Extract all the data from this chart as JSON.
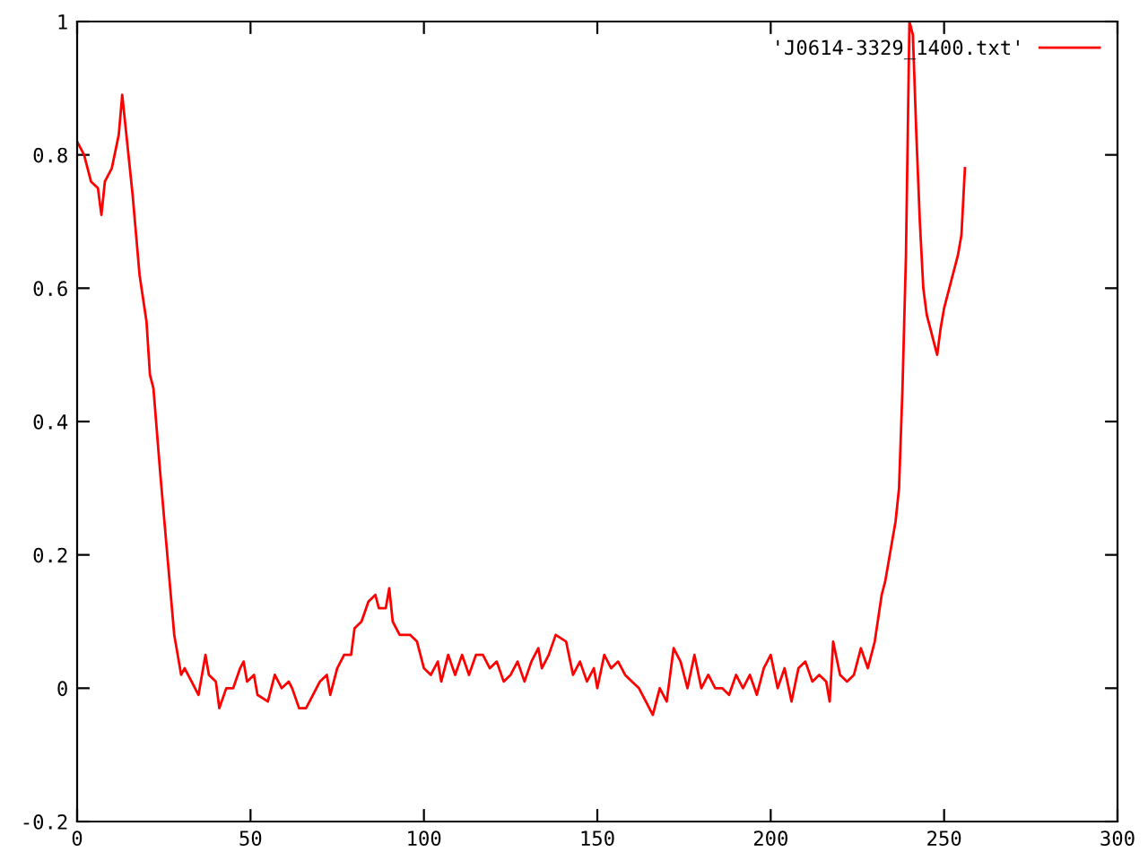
{
  "chart_data": {
    "type": "line",
    "xlim": [
      0,
      300
    ],
    "ylim": [
      -0.2,
      1
    ],
    "xticks": [
      0,
      50,
      100,
      150,
      200,
      250,
      300
    ],
    "yticks": [
      -0.2,
      0,
      0.2,
      0.4,
      0.6,
      0.8,
      1
    ],
    "grid": false,
    "legend": "top right",
    "marker": "none",
    "line_style": "solid",
    "series": [
      {
        "name": "'J0614-3329_1400.txt'",
        "color": "#ff0000",
        "x": [
          0,
          2,
          4,
          6,
          7,
          8,
          10,
          12,
          13,
          14,
          16,
          18,
          20,
          21,
          22,
          24,
          26,
          28,
          30,
          31,
          33,
          35,
          37,
          38,
          40,
          41,
          43,
          45,
          47,
          48,
          49,
          51,
          52,
          55,
          57,
          59,
          61,
          62,
          64,
          66,
          68,
          70,
          72,
          73,
          75,
          77,
          79,
          80,
          82,
          84,
          86,
          87,
          89,
          90,
          91,
          93,
          96,
          98,
          100,
          102,
          104,
          105,
          107,
          109,
          111,
          113,
          115,
          117,
          119,
          121,
          123,
          125,
          127,
          129,
          131,
          133,
          134,
          136,
          138,
          141,
          143,
          145,
          147,
          149,
          150,
          152,
          154,
          156,
          158,
          160,
          162,
          164,
          166,
          168,
          170,
          172,
          174,
          176,
          178,
          180,
          182,
          184,
          186,
          188,
          190,
          192,
          194,
          196,
          198,
          200,
          202,
          204,
          206,
          208,
          210,
          212,
          214,
          216,
          217,
          218,
          220,
          222,
          224,
          226,
          228,
          230,
          232,
          233,
          235,
          236,
          237,
          238,
          239,
          240,
          241,
          242,
          243,
          244,
          245,
          246,
          247,
          248,
          249,
          250,
          252,
          253,
          254,
          255,
          256
        ],
        "values": [
          0.82,
          0.8,
          0.76,
          0.75,
          0.71,
          0.76,
          0.78,
          0.83,
          0.89,
          0.84,
          0.74,
          0.62,
          0.55,
          0.47,
          0.45,
          0.32,
          0.2,
          0.08,
          0.02,
          0.03,
          0.01,
          -0.01,
          0.05,
          0.02,
          0.01,
          -0.03,
          0.0,
          0.0,
          0.03,
          0.04,
          0.01,
          0.02,
          -0.01,
          -0.02,
          0.02,
          0.0,
          0.01,
          0.0,
          -0.03,
          -0.03,
          -0.01,
          0.01,
          0.02,
          -0.01,
          0.03,
          0.05,
          0.05,
          0.09,
          0.1,
          0.13,
          0.14,
          0.12,
          0.12,
          0.15,
          0.1,
          0.08,
          0.08,
          0.07,
          0.03,
          0.02,
          0.04,
          0.01,
          0.05,
          0.02,
          0.05,
          0.02,
          0.05,
          0.05,
          0.03,
          0.04,
          0.01,
          0.02,
          0.04,
          0.01,
          0.04,
          0.06,
          0.03,
          0.05,
          0.08,
          0.07,
          0.02,
          0.04,
          0.01,
          0.03,
          0.0,
          0.05,
          0.03,
          0.04,
          0.02,
          0.01,
          0.0,
          -0.02,
          -0.04,
          0.0,
          -0.02,
          0.06,
          0.04,
          0.0,
          0.05,
          0.0,
          0.02,
          0.0,
          0.0,
          -0.01,
          0.02,
          0.0,
          0.02,
          -0.01,
          0.03,
          0.05,
          0.0,
          0.03,
          -0.02,
          0.03,
          0.04,
          0.01,
          0.02,
          0.01,
          -0.02,
          0.07,
          0.02,
          0.01,
          0.02,
          0.06,
          0.03,
          0.07,
          0.14,
          0.16,
          0.22,
          0.25,
          0.3,
          0.45,
          0.65,
          1.0,
          0.98,
          0.83,
          0.7,
          0.6,
          0.56,
          0.54,
          0.52,
          0.5,
          0.54,
          0.57,
          0.61,
          0.63,
          0.65,
          0.68,
          0.78
        ]
      }
    ]
  }
}
